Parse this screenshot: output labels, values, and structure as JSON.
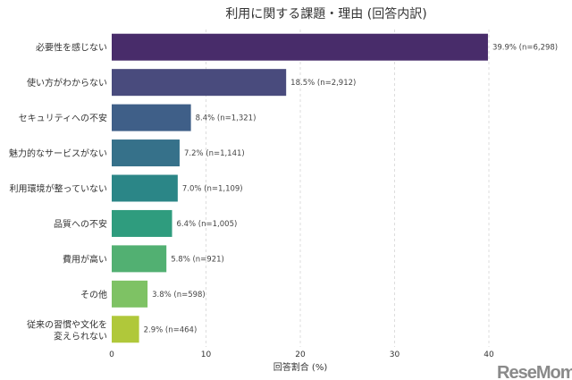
{
  "chart_data": {
    "type": "bar",
    "orientation": "horizontal",
    "title": "利用に関する課題・理由 (回答内訳)",
    "xlabel": "回答割合 (%)",
    "ylabel": "",
    "xlim": [
      0,
      41.5
    ],
    "xticks": [
      0,
      10,
      20,
      30,
      40
    ],
    "grid": "vertical dashed",
    "categories": [
      "必要性を感じない",
      "使い方がわからない",
      "セキュリティへの不安",
      "魅力的なサービスがない",
      "利用環境が整っていない",
      "品質への不安",
      "費用が高い",
      "その他",
      "従来の習慣や文化を\n変えられない"
    ],
    "values": [
      39.9,
      18.5,
      8.4,
      7.2,
      7.0,
      6.4,
      5.8,
      3.8,
      2.9
    ],
    "data_labels": [
      "39.9% (n=6,298)",
      "18.5% (n=2,912)",
      "8.4% (n=1,321)",
      "7.2% (n=1,141)",
      "7.0% (n=1,109)",
      "6.4% (n=1,005)",
      "5.8% (n=921)",
      "3.8% (n=598)",
      "2.9% (n=464)"
    ],
    "colors": [
      "#482c6a",
      "#494b7d",
      "#3f5f88",
      "#36718a",
      "#2b8687",
      "#2f9c7e",
      "#52b072",
      "#7ec264",
      "#b0c83a"
    ]
  },
  "watermark": "ReseMom"
}
